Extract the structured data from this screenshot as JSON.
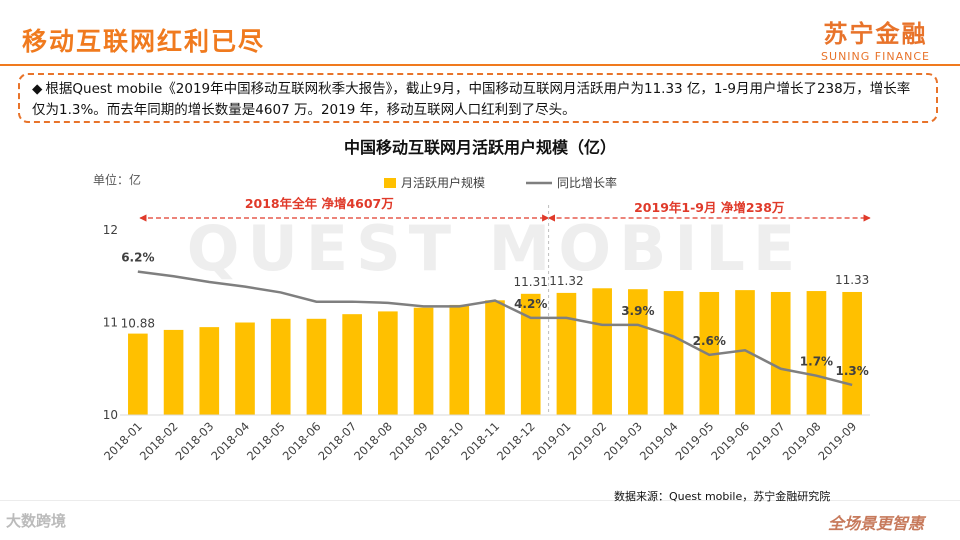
{
  "header": {
    "title": "移动互联网红利已尽",
    "brand_cn": "苏宁金融",
    "brand_en": "SUNING FINANCE"
  },
  "summary": {
    "bullet": "◆",
    "text": "根据Quest mobile《2019年中国移动互联网秋季大报告》，截止9月，中国移动互联网月活跃用户为11.33 亿，1-9月用户增长了238万，增长率仅为1.3%。而去年同期的增长数量是4607 万。2019 年，移动互联网人口红利到了尽头。"
  },
  "footer": {
    "source": "数据来源：Quest mobile，苏宁金融研究院",
    "left_logo": "大数跨境",
    "right_slogan": "全场景更智惠"
  },
  "colors": {
    "bar": "#FFC000",
    "line": "#7F7F7F",
    "accent": "#F07A1E",
    "annotation": "#E03A2A"
  },
  "chart_data": {
    "type": "bar",
    "title": "中国移动互联网月活跃用户规模（亿）",
    "ylabel": "单位：亿",
    "ylim": [
      10,
      12
    ],
    "yticks": [
      10,
      11,
      12
    ],
    "categories": [
      "2018-01",
      "2018-02",
      "2018-03",
      "2018-04",
      "2018-05",
      "2018-06",
      "2018-07",
      "2018-08",
      "2018-09",
      "2018-10",
      "2018-11",
      "2018-12",
      "2019-01",
      "2019-02",
      "2019-03",
      "2019-04",
      "2019-05",
      "2019-06",
      "2019-07",
      "2019-08",
      "2019-09"
    ],
    "series": [
      {
        "name": "月活跃用户规模",
        "kind": "bar",
        "values": [
          10.88,
          10.92,
          10.95,
          11.0,
          11.04,
          11.04,
          11.09,
          11.12,
          11.16,
          11.19,
          11.24,
          11.31,
          11.32,
          11.37,
          11.36,
          11.34,
          11.33,
          11.35,
          11.33,
          11.34,
          11.33
        ]
      },
      {
        "name": "同比增长率",
        "kind": "line",
        "values": [
          6.2,
          6.0,
          5.75,
          5.55,
          5.3,
          4.9,
          4.9,
          4.85,
          4.7,
          4.7,
          4.95,
          4.2,
          4.2,
          3.9,
          3.9,
          3.4,
          2.6,
          2.8,
          2.0,
          1.7,
          1.3
        ],
        "range": [
          0,
          8
        ]
      }
    ],
    "value_labels": [
      {
        "index": 0,
        "text": "10.88"
      },
      {
        "index": 11,
        "text": "11.31"
      },
      {
        "index": 12,
        "text": "11.32"
      },
      {
        "index": 20,
        "text": "11.33"
      }
    ],
    "rate_labels": [
      {
        "index": 0,
        "text": "6.2%"
      },
      {
        "index": 11,
        "text": "4.2%"
      },
      {
        "index": 14,
        "text": "3.9%"
      },
      {
        "index": 16,
        "text": "2.6%"
      },
      {
        "index": 19,
        "text": "1.7%"
      },
      {
        "index": 20,
        "text": "1.3%"
      }
    ],
    "annotations": [
      {
        "text": "2018年全年  净增4607万",
        "from_index": 0,
        "to_index": 12
      },
      {
        "text": "2019年1-9月  净增238万",
        "from_index": 12,
        "to_index": 20
      }
    ],
    "watermark": "QUEST MOBILE"
  }
}
